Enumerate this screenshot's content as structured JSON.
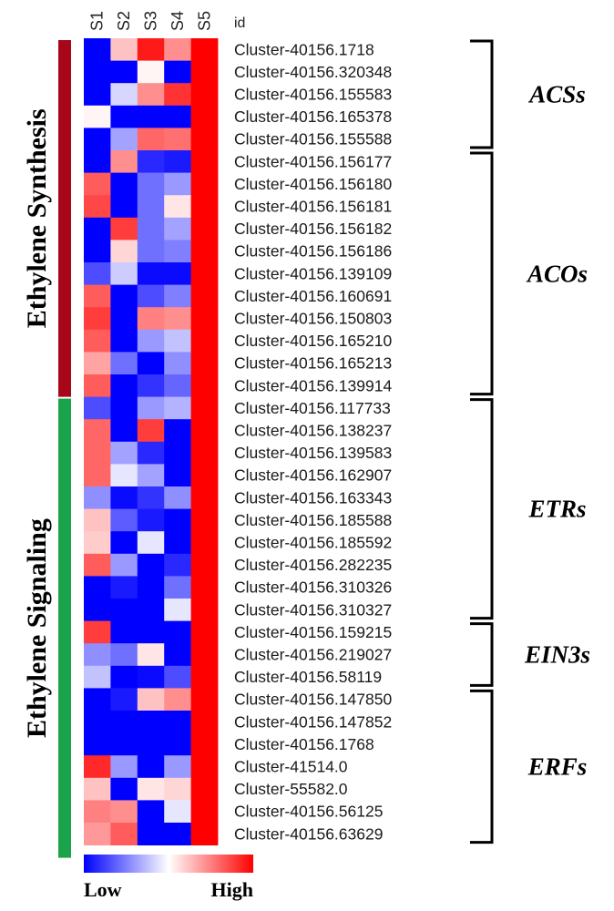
{
  "chart_data": {
    "type": "heatmap",
    "columns": [
      "S1",
      "S2",
      "S3",
      "S4",
      "S5"
    ],
    "id_header": "id",
    "rows": [
      {
        "id": "Cluster-40156.1718",
        "values": [
          0.0,
          0.62,
          0.95,
          0.72,
          1.0
        ]
      },
      {
        "id": "Cluster-40156.320348",
        "values": [
          0.0,
          0.0,
          0.52,
          0.0,
          1.0
        ]
      },
      {
        "id": "Cluster-40156.155583",
        "values": [
          0.0,
          0.42,
          0.72,
          0.9,
          1.0
        ]
      },
      {
        "id": "Cluster-40156.165378",
        "values": [
          0.52,
          0.0,
          0.0,
          0.0,
          1.0
        ]
      },
      {
        "id": "Cluster-40156.155588",
        "values": [
          0.0,
          0.32,
          0.8,
          0.78,
          1.0
        ]
      },
      {
        "id": "Cluster-40156.156177",
        "values": [
          0.0,
          0.72,
          0.08,
          0.05,
          1.0
        ]
      },
      {
        "id": "Cluster-40156.156180",
        "values": [
          0.82,
          0.0,
          0.22,
          0.3,
          1.0
        ]
      },
      {
        "id": "Cluster-40156.156181",
        "values": [
          0.86,
          0.0,
          0.22,
          0.55,
          1.0
        ]
      },
      {
        "id": "Cluster-40156.156182",
        "values": [
          0.0,
          0.88,
          0.22,
          0.32,
          1.0
        ]
      },
      {
        "id": "Cluster-40156.156186",
        "values": [
          0.0,
          0.58,
          0.22,
          0.25,
          1.0
        ]
      },
      {
        "id": "Cluster-40156.139109",
        "values": [
          0.15,
          0.4,
          0.02,
          0.02,
          1.0
        ]
      },
      {
        "id": "Cluster-40156.160691",
        "values": [
          0.82,
          0.0,
          0.15,
          0.25,
          1.0
        ]
      },
      {
        "id": "Cluster-40156.150803",
        "values": [
          0.88,
          0.0,
          0.75,
          0.72,
          1.0
        ]
      },
      {
        "id": "Cluster-40156.165210",
        "values": [
          0.82,
          0.0,
          0.3,
          0.38,
          1.0
        ]
      },
      {
        "id": "Cluster-40156.165213",
        "values": [
          0.68,
          0.22,
          0.0,
          0.28,
          1.0
        ]
      },
      {
        "id": "Cluster-40156.139914",
        "values": [
          0.82,
          0.0,
          0.1,
          0.2,
          1.0
        ]
      },
      {
        "id": "Cluster-40156.117733",
        "values": [
          0.15,
          0.0,
          0.3,
          0.35,
          1.0
        ]
      },
      {
        "id": "Cluster-40156.138237",
        "values": [
          0.8,
          0.0,
          0.88,
          0.0,
          1.0
        ]
      },
      {
        "id": "Cluster-40156.139583",
        "values": [
          0.8,
          0.32,
          0.08,
          0.0,
          1.0
        ]
      },
      {
        "id": "Cluster-40156.162907",
        "values": [
          0.8,
          0.45,
          0.32,
          0.0,
          1.0
        ]
      },
      {
        "id": "Cluster-40156.163343",
        "values": [
          0.28,
          0.02,
          0.1,
          0.28,
          1.0
        ]
      },
      {
        "id": "Cluster-40156.185588",
        "values": [
          0.62,
          0.18,
          0.05,
          0.0,
          1.0
        ]
      },
      {
        "id": "Cluster-40156.185592",
        "values": [
          0.6,
          0.0,
          0.45,
          0.0,
          1.0
        ]
      },
      {
        "id": "Cluster-40156.282235",
        "values": [
          0.82,
          0.3,
          0.0,
          0.08,
          1.0
        ]
      },
      {
        "id": "Cluster-40156.310326",
        "values": [
          0.0,
          0.05,
          0.0,
          0.22,
          1.0
        ]
      },
      {
        "id": "Cluster-40156.310327",
        "values": [
          0.0,
          0.0,
          0.0,
          0.45,
          1.0
        ]
      },
      {
        "id": "Cluster-40156.159215",
        "values": [
          0.88,
          0.0,
          0.0,
          0.0,
          1.0
        ]
      },
      {
        "id": "Cluster-40156.219027",
        "values": [
          0.28,
          0.22,
          0.55,
          0.0,
          1.0
        ]
      },
      {
        "id": "Cluster-40156.58119",
        "values": [
          0.38,
          0.0,
          0.02,
          0.15,
          1.0
        ]
      },
      {
        "id": "Cluster-40156.147850",
        "values": [
          0.0,
          0.05,
          0.62,
          0.72,
          1.0
        ]
      },
      {
        "id": "Cluster-40156.147852",
        "values": [
          0.0,
          0.0,
          0.0,
          0.0,
          1.0
        ]
      },
      {
        "id": "Cluster-40156.1768",
        "values": [
          0.0,
          0.0,
          0.0,
          0.0,
          1.0
        ]
      },
      {
        "id": "Cluster-41514.0",
        "values": [
          0.92,
          0.3,
          0.0,
          0.3,
          1.0
        ]
      },
      {
        "id": "Cluster-55582.0",
        "values": [
          0.62,
          0.0,
          0.55,
          0.58,
          1.0
        ]
      },
      {
        "id": "Cluster-40156.56125",
        "values": [
          0.75,
          0.72,
          0.0,
          0.45,
          1.0
        ]
      },
      {
        "id": "Cluster-40156.63629",
        "values": [
          0.7,
          0.82,
          0.0,
          0.0,
          1.0
        ]
      }
    ],
    "gene_groups": [
      {
        "label": "ACSs",
        "start": 0,
        "end": 4
      },
      {
        "label": "ACOs",
        "start": 5,
        "end": 15
      },
      {
        "label": "ETRs",
        "start": 16,
        "end": 25
      },
      {
        "label": "EIN3s",
        "start": 26,
        "end": 28
      },
      {
        "label": "ERFs",
        "start": 29,
        "end": 35
      }
    ],
    "sections": [
      {
        "label": "Ethylene Synthesis",
        "start": 0,
        "end": 15,
        "color": "#a8071a"
      },
      {
        "label": "Ethylene Signaling",
        "start": 16,
        "end": 35,
        "color": "#1aa34a"
      }
    ],
    "color_scale": {
      "low": "#0000ff",
      "mid": "#ffffff",
      "high": "#ff0000"
    },
    "legend": {
      "low_label": "Low",
      "high_label": "High"
    }
  }
}
